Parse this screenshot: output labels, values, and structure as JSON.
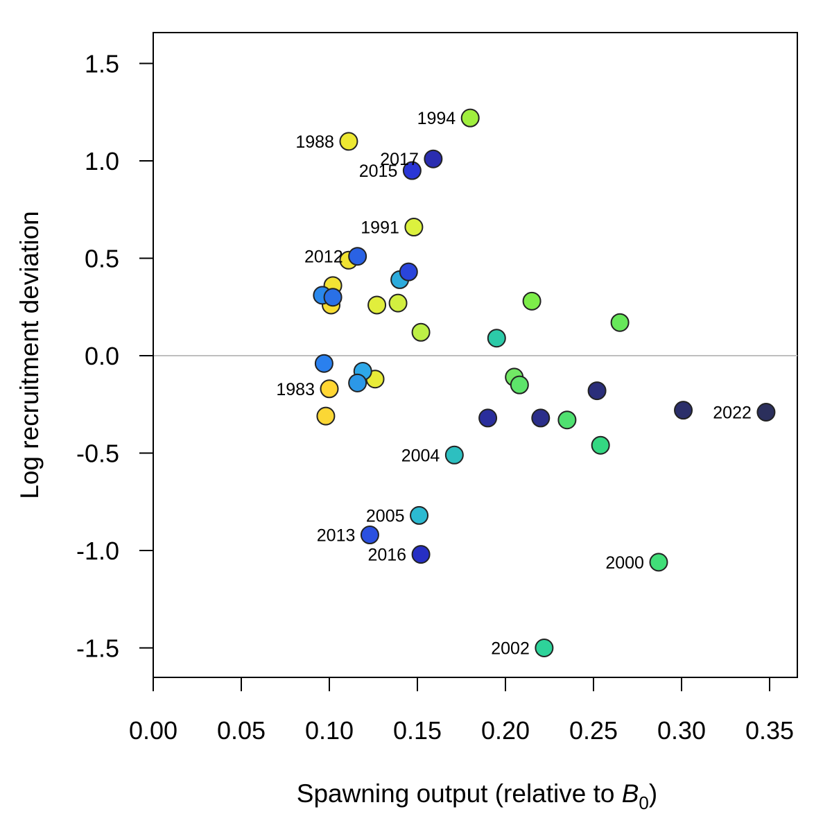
{
  "chart_data": {
    "type": "scatter",
    "xlabel": "Spawning output (relative to ",
    "xlabel_symbol": "B",
    "xlabel_subscript": "0",
    "xlabel_close": ")",
    "ylabel": "Log recruitment deviation",
    "xlim": [
      0.0,
      0.365
    ],
    "ylim": [
      -1.65,
      1.65
    ],
    "xticks": [
      0.0,
      0.05,
      0.1,
      0.15,
      0.2,
      0.25,
      0.3,
      0.35
    ],
    "xtick_labels": [
      "0.00",
      "0.05",
      "0.10",
      "0.15",
      "0.20",
      "0.25",
      "0.30",
      "0.35"
    ],
    "yticks": [
      1.5,
      1.0,
      0.5,
      0.0,
      -0.5,
      -1.0,
      -1.5
    ],
    "ytick_labels": [
      "1.5",
      "1.0",
      "0.5",
      "0.0",
      "-0.5",
      "-1.0",
      "-1.5"
    ],
    "reference_line": 0,
    "reference_line_color": "#bebebe",
    "color_scale": "viridis-reversed (earliest year yellow, latest year dark navy)",
    "points": [
      {
        "x": 0.1,
        "y": -0.17,
        "color": "#ffd633",
        "label": "1983"
      },
      {
        "x": 0.098,
        "y": -0.31,
        "color": "#fbd735",
        "label": ""
      },
      {
        "x": 0.101,
        "y": 0.26,
        "color": "#f7dd33",
        "label": ""
      },
      {
        "x": 0.102,
        "y": 0.36,
        "color": "#f3e334",
        "label": ""
      },
      {
        "x": 0.111,
        "y": 0.49,
        "color": "#f0e332",
        "label": ""
      },
      {
        "x": 0.111,
        "y": 1.1,
        "color": "#ede832",
        "label": "1988"
      },
      {
        "x": 0.126,
        "y": -0.12,
        "color": "#e8eb38",
        "label": ""
      },
      {
        "x": 0.127,
        "y": 0.26,
        "color": "#e1ee3c",
        "label": ""
      },
      {
        "x": 0.148,
        "y": 0.66,
        "color": "#dcf13e",
        "label": "1991"
      },
      {
        "x": 0.139,
        "y": 0.27,
        "color": "#d2ef40",
        "label": ""
      },
      {
        "x": 0.152,
        "y": 0.12,
        "color": "#bdf046",
        "label": ""
      },
      {
        "x": 0.18,
        "y": 1.22,
        "color": "#a0ef3e",
        "label": "1994"
      },
      {
        "x": 0.215,
        "y": 0.28,
        "color": "#7ded4a",
        "label": ""
      },
      {
        "x": 0.265,
        "y": 0.17,
        "color": "#67e85a",
        "label": ""
      },
      {
        "x": 0.205,
        "y": -0.11,
        "color": "#72e865",
        "label": ""
      },
      {
        "x": 0.208,
        "y": -0.15,
        "color": "#5de46a",
        "label": ""
      },
      {
        "x": 0.235,
        "y": -0.33,
        "color": "#4fe070",
        "label": ""
      },
      {
        "x": 0.287,
        "y": -1.06,
        "color": "#41de78",
        "label": "2000"
      },
      {
        "x": 0.254,
        "y": -0.46,
        "color": "#34d882",
        "label": ""
      },
      {
        "x": 0.222,
        "y": -1.5,
        "color": "#2ed39a",
        "label": "2002"
      },
      {
        "x": 0.195,
        "y": 0.09,
        "color": "#2ccaa8",
        "label": ""
      },
      {
        "x": 0.171,
        "y": -0.51,
        "color": "#2dbfc0",
        "label": "2004"
      },
      {
        "x": 0.151,
        "y": -0.82,
        "color": "#2cbad1",
        "label": "2005"
      },
      {
        "x": 0.14,
        "y": 0.39,
        "color": "#2cabdc",
        "label": ""
      },
      {
        "x": 0.119,
        "y": -0.08,
        "color": "#2ea8e8",
        "label": ""
      },
      {
        "x": 0.116,
        "y": -0.14,
        "color": "#2c98e8",
        "label": ""
      },
      {
        "x": 0.096,
        "y": 0.31,
        "color": "#2a88ec",
        "label": ""
      },
      {
        "x": 0.097,
        "y": -0.04,
        "color": "#2a80ee",
        "label": ""
      },
      {
        "x": 0.102,
        "y": 0.3,
        "color": "#2a70e6",
        "label": ""
      },
      {
        "x": 0.116,
        "y": 0.51,
        "color": "#2a62e4",
        "label": "2012"
      },
      {
        "x": 0.123,
        "y": -0.92,
        "color": "#2a50e0",
        "label": "2013"
      },
      {
        "x": 0.145,
        "y": 0.43,
        "color": "#2a45db",
        "label": ""
      },
      {
        "x": 0.147,
        "y": 0.95,
        "color": "#2a36d6",
        "label": "2015"
      },
      {
        "x": 0.152,
        "y": -1.02,
        "color": "#262fc4",
        "label": "2016"
      },
      {
        "x": 0.159,
        "y": 1.01,
        "color": "#2a2db0",
        "label": "2017"
      },
      {
        "x": 0.19,
        "y": -0.32,
        "color": "#2a2e9c",
        "label": ""
      },
      {
        "x": 0.22,
        "y": -0.32,
        "color": "#2b2e8a",
        "label": ""
      },
      {
        "x": 0.252,
        "y": -0.18,
        "color": "#2b2e7a",
        "label": ""
      },
      {
        "x": 0.301,
        "y": -0.28,
        "color": "#2b2f6a",
        "label": ""
      },
      {
        "x": 0.348,
        "y": -0.29,
        "color": "#2b2f5c",
        "label": "2022"
      }
    ]
  }
}
